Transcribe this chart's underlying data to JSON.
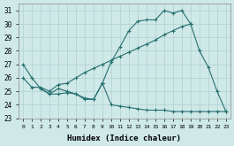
{
  "xlabel": "Humidex (Indice chaleur)",
  "bg_color": "#cfe8e8",
  "grid_color": "#b0d0d0",
  "line_color": "#267070",
  "xlim": [
    -0.5,
    23.5
  ],
  "ylim": [
    23,
    31.5
  ],
  "yticks": [
    23,
    24,
    25,
    26,
    27,
    28,
    29,
    30,
    31
  ],
  "xticks": [
    0,
    1,
    2,
    3,
    4,
    5,
    6,
    7,
    8,
    9,
    10,
    11,
    12,
    13,
    14,
    15,
    16,
    17,
    18,
    19,
    20,
    21,
    22,
    23
  ],
  "lines": [
    {
      "x": [
        0,
        1,
        2,
        3,
        4,
        5,
        6,
        7,
        8,
        9,
        10,
        11,
        12,
        13,
        14,
        15,
        16,
        17,
        18,
        19
      ],
      "y": [
        27.0,
        26.0,
        25.2,
        24.8,
        25.2,
        25.0,
        24.8,
        24.4,
        24.4,
        25.6,
        27.2,
        28.3,
        29.5,
        30.2,
        30.3,
        30.3,
        31.0,
        30.8,
        31.0,
        30.0
      ]
    },
    {
      "x": [
        19,
        20,
        21,
        22,
        23
      ],
      "y": [
        30.0,
        28.0,
        26.8,
        25.0,
        23.5
      ]
    },
    {
      "x": [
        0,
        1,
        2,
        3,
        4,
        5,
        6,
        7,
        8,
        9,
        10,
        11,
        12,
        13,
        14,
        15,
        16,
        17,
        18,
        19
      ],
      "y": [
        26.0,
        25.3,
        25.3,
        25.0,
        25.5,
        25.6,
        26.0,
        26.4,
        26.7,
        27.0,
        27.3,
        27.6,
        27.9,
        28.2,
        28.5,
        28.8,
        29.2,
        29.5,
        29.8,
        30.0
      ]
    },
    {
      "x": [
        2,
        3,
        4,
        5,
        6,
        7,
        8,
        9
      ],
      "y": [
        25.2,
        24.8,
        24.8,
        24.9,
        24.8,
        24.5,
        24.4,
        25.6
      ]
    },
    {
      "x": [
        9,
        10,
        11,
        12,
        13,
        14,
        15,
        16,
        17,
        18,
        19,
        20,
        21,
        22,
        23
      ],
      "y": [
        25.6,
        24.0,
        23.9,
        23.8,
        23.7,
        23.6,
        23.6,
        23.6,
        23.5,
        23.5,
        23.5,
        23.5,
        23.5,
        23.5,
        23.5
      ]
    }
  ]
}
